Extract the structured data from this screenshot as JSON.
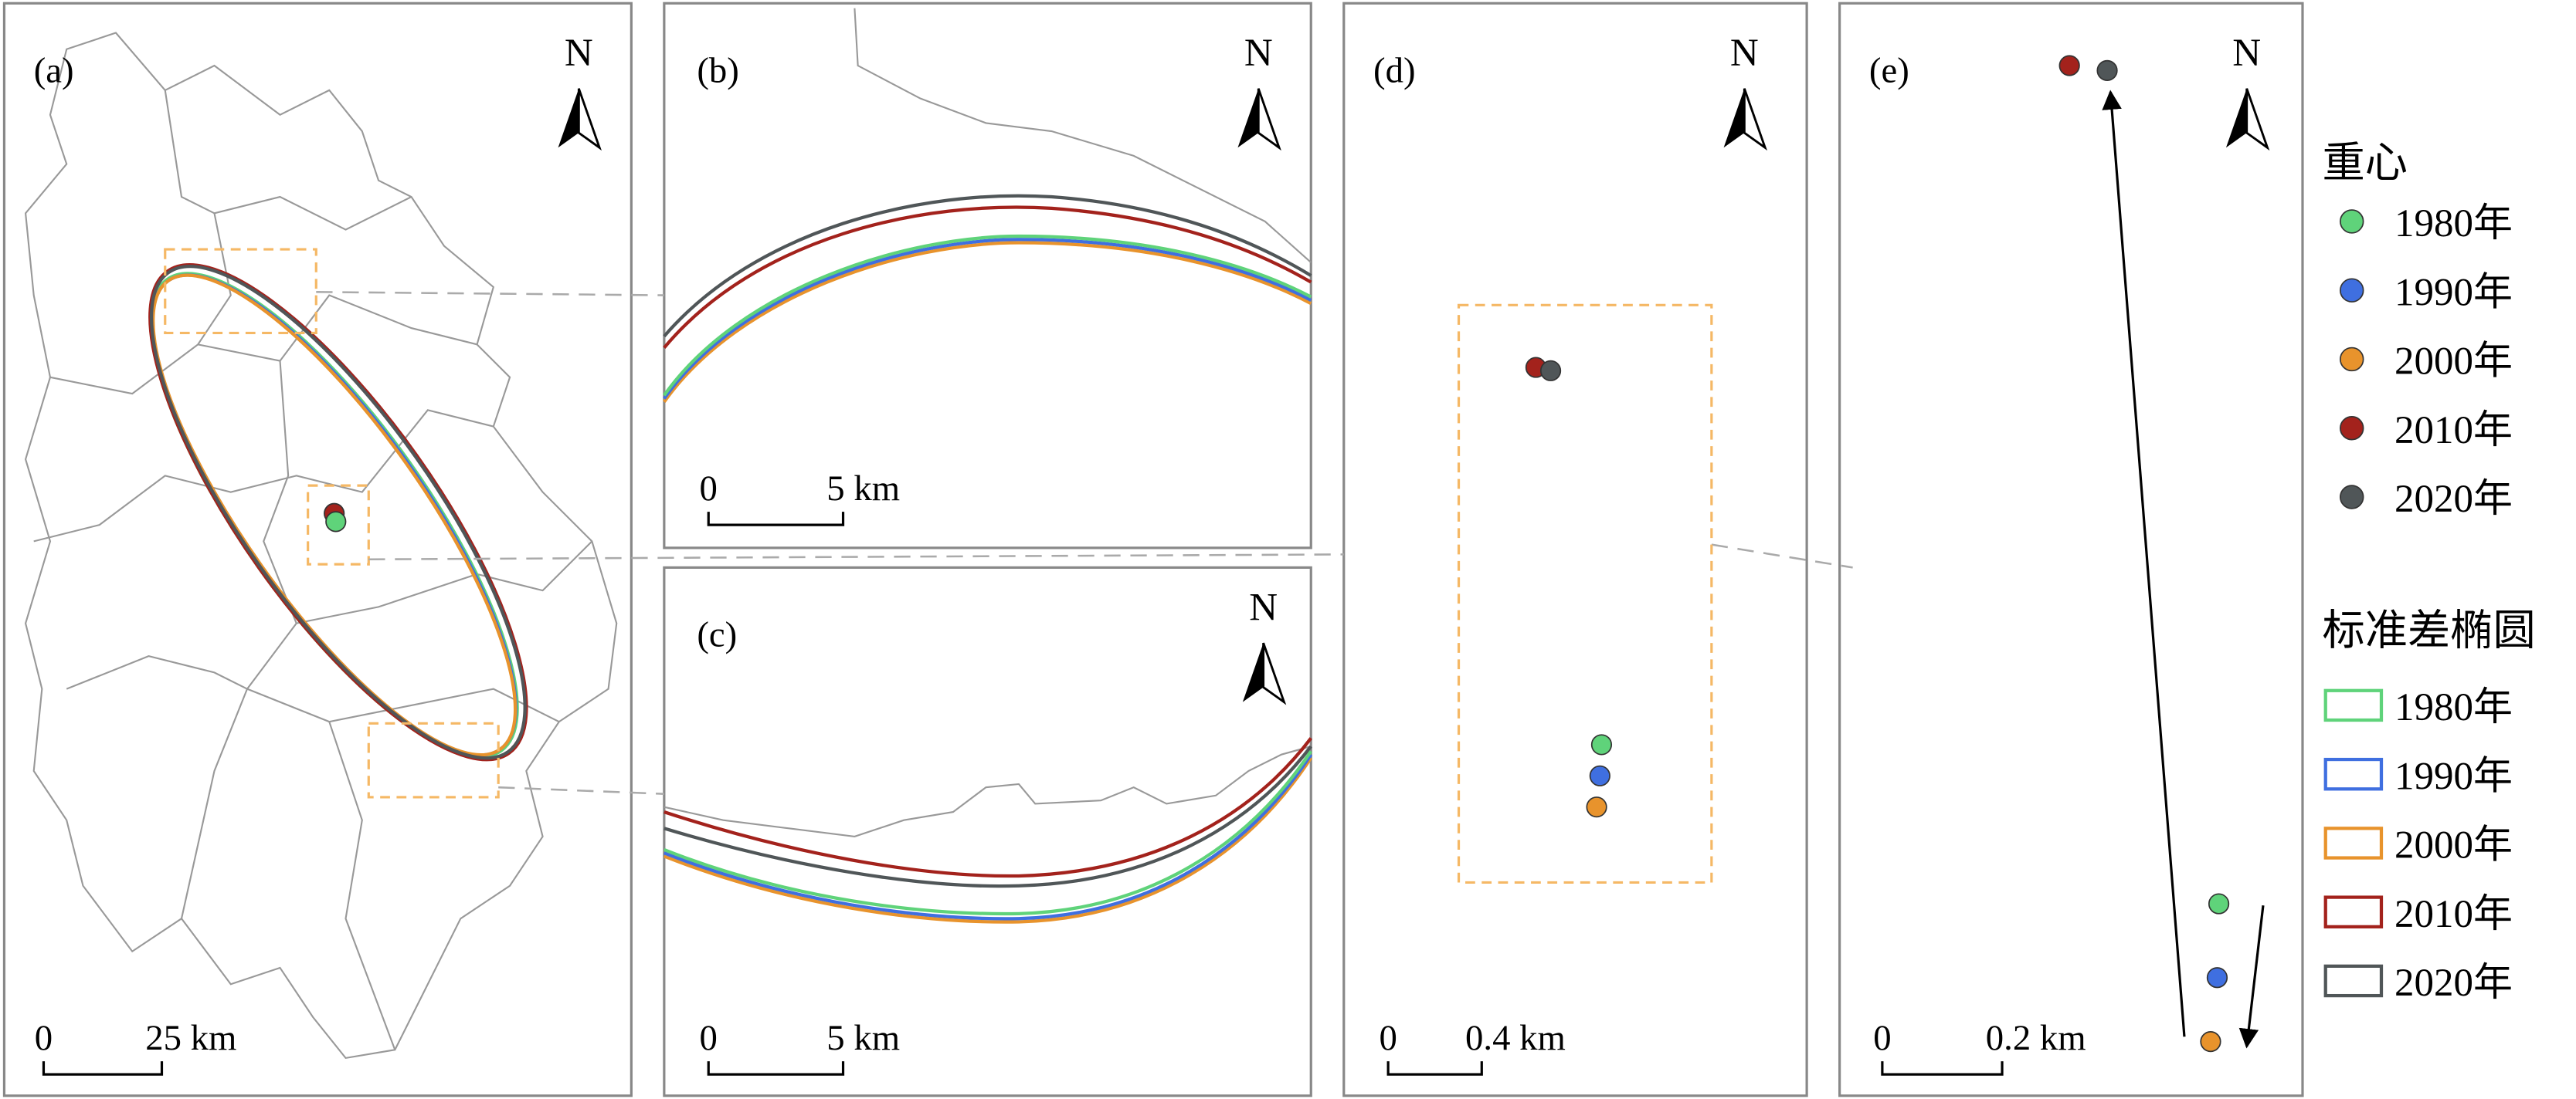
{
  "panels": [
    {
      "label": "(a)",
      "north": "N",
      "scale": [
        "0",
        "25 km"
      ]
    },
    {
      "label": "(b)",
      "north": "N",
      "scale": [
        "0",
        "5 km"
      ]
    },
    {
      "label": "(c)",
      "north": "N",
      "scale": [
        "0",
        "5 km"
      ]
    },
    {
      "label": "(d)",
      "north": "N",
      "scale": [
        "0",
        "0.4 km"
      ]
    },
    {
      "label": "(e)",
      "north": "N",
      "scale": [
        "0",
        "0.2 km"
      ]
    }
  ],
  "legend": {
    "centroid_title": "重心",
    "ellipse_title": "标准差椭圆",
    "items": [
      {
        "label": "1980年",
        "color": "#5fd37a"
      },
      {
        "label": "1990年",
        "color": "#3f6fe0"
      },
      {
        "label": "2000年",
        "color": "#e8932c"
      },
      {
        "label": "2010年",
        "color": "#a3221c"
      },
      {
        "label": "2020年",
        "color": "#505658"
      }
    ]
  }
}
